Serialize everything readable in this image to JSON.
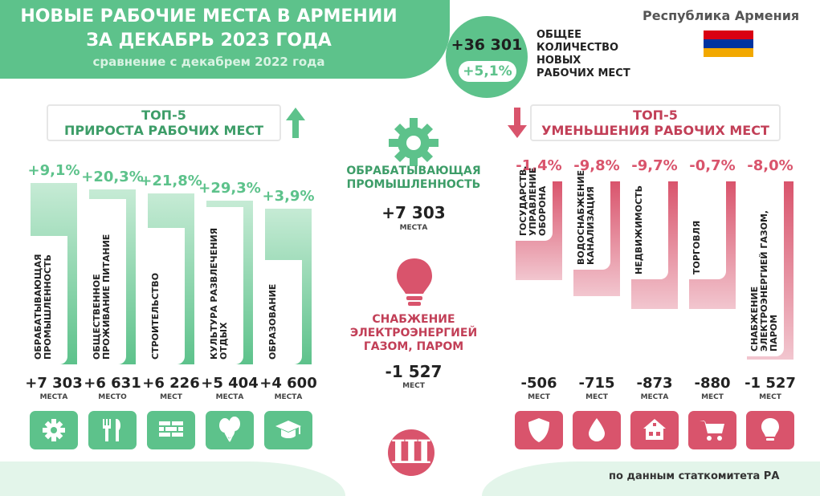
{
  "header": {
    "title_line1": "НОВЫЕ РАБОЧИЕ МЕСТА В АРМЕНИИ",
    "title_line2": "ЗА ДЕКАБРЬ 2023 ГОДА",
    "subtitle": "сравнение с декабрем 2022 года",
    "country": "Республика Армения",
    "flag_colors": [
      "#d90012",
      "#0033a0",
      "#f2a800"
    ]
  },
  "total": {
    "number": "+36 301",
    "percent": "+5,1%",
    "label": "ОБЩЕЕ КОЛИЧЕСТВО НОВЫХ РАБОЧИХ МЕСТ"
  },
  "top_growth": {
    "title_line1": "ТОП-5",
    "title_line2": "ПРИРОСТА РАБОЧИХ МЕСТ"
  },
  "top_decline": {
    "title_line1": "ТОП-5",
    "title_line2": "УМЕНЬШЕНИЯ РАБОЧИХ МЕСТ"
  },
  "center": {
    "green_title": "ОБРАБАТЫВАЮЩАЯ ПРОМЫШЛЕННОСТЬ",
    "green_value": "+7 303",
    "green_unit": "МЕСТА",
    "red_title": "СНАБЖЕНИЕ ЭЛЕКТРОЭНЕРГИЕЙ ГАЗОМ, ПАРОМ",
    "red_value": "-1 527",
    "red_unit": "МЕСТ"
  },
  "source": "по данным статкомитета РА",
  "logo_text": "Ш",
  "colors": {
    "green": "#5dc28b",
    "green_text": "#3d9d68",
    "red": "#d9546c",
    "red_text": "#c23f57"
  },
  "chart_data": [
    {
      "type": "bar",
      "title": "ТОП-5 ПРИРОСТА РАБОЧИХ МЕСТ",
      "categories": [
        "ОБРАБАТЫВАЮЩАЯ ПРОМЫШЛЕННОСТЬ",
        "ОБЩЕСТВЕННОЕ ПРОЖИВАНИЕ ПИТАНИЕ",
        "СТРОИТЕЛЬСТВО",
        "КУЛЬТУРА РАЗВЛЕЧЕНИЯ ОТДЫХ",
        "ОБРАЗОВАНИЕ"
      ],
      "values": [
        7303,
        6631,
        6226,
        5404,
        4600
      ],
      "value_labels": [
        "+7 303",
        "+6 631",
        "+6 226",
        "+5 404",
        "+4 600"
      ],
      "units": [
        "МЕСТА",
        "МЕСТО",
        "МЕСТ",
        "МЕСТА",
        "МЕСТА"
      ],
      "percent_labels": [
        "+9,1%",
        "+20,3%",
        "+21,8%",
        "+29,3%",
        "+3,9%"
      ],
      "icons": [
        "gear-icon",
        "fork-knife-icon",
        "brick-wall-icon",
        "balloons-icon",
        "graduation-cap-icon"
      ]
    },
    {
      "type": "bar",
      "title": "ТОП-5 УМЕНЬШЕНИЯ РАБОЧИХ МЕСТ",
      "categories": [
        "ГОСУДАРСТВ. УПРАВЛЕНИЕ ОБОРОНА",
        "ВОДОСНАБЖЕНИЕ КАНАЛИЗАЦИЯ",
        "НЕДВИЖИМОСТЬ",
        "ТОРГОВЛЯ",
        "СНАБЖЕНИЕ ЭЛЕКТРОЭНЕРГИЕЙ ГАЗОМ, ПАРОМ"
      ],
      "values": [
        -506,
        -715,
        -873,
        -880,
        -1527
      ],
      "value_labels": [
        "-506",
        "-715",
        "-873",
        "-880",
        "-1 527"
      ],
      "units": [
        "МЕСТ",
        "МЕСТ",
        "МЕСТА",
        "МЕСТ",
        "МЕСТ"
      ],
      "percent_labels": [
        "-1,4%",
        "-9,8%",
        "-9,7%",
        "-0,7%",
        "-8,0%"
      ],
      "icons": [
        "shield-icon",
        "water-drop-icon",
        "houses-icon",
        "shopping-cart-icon",
        "light-bulb-icon"
      ]
    }
  ]
}
